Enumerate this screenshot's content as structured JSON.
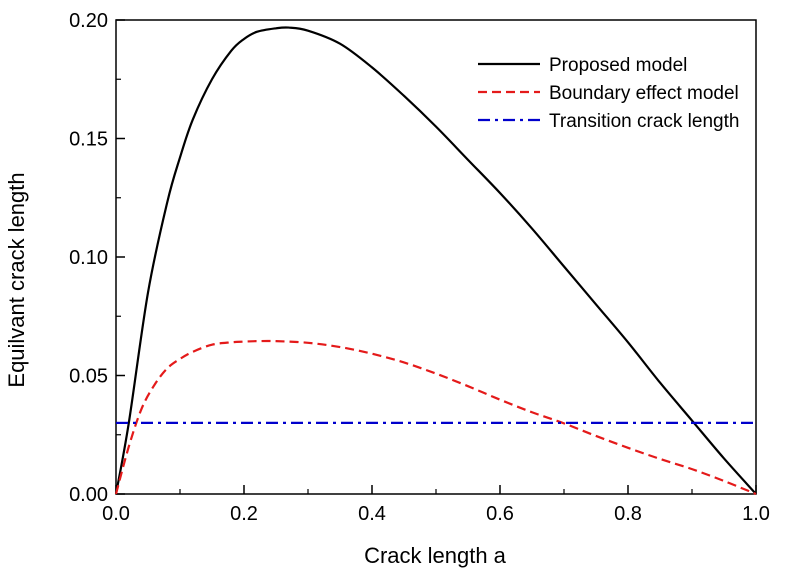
{
  "chart_data": {
    "type": "line",
    "title": "",
    "xlabel": "Crack length a",
    "ylabel": "Equilvant crack length",
    "xlim": [
      0.0,
      1.0
    ],
    "ylim": [
      0.0,
      0.2
    ],
    "xticks": [
      "0.0",
      "0.2",
      "0.4",
      "0.6",
      "0.8",
      "1.0"
    ],
    "yticks": [
      "0.00",
      "0.05",
      "0.10",
      "0.15",
      "0.20"
    ],
    "grid": false,
    "legend_position": "top-right",
    "series": [
      {
        "name": "Proposed model",
        "color": "#000000",
        "style": "solid",
        "x": [
          0.0,
          0.02,
          0.05,
          0.08,
          0.1,
          0.12,
          0.15,
          0.18,
          0.2,
          0.22,
          0.25,
          0.27,
          0.3,
          0.35,
          0.4,
          0.45,
          0.5,
          0.55,
          0.6,
          0.65,
          0.7,
          0.75,
          0.8,
          0.85,
          0.9,
          0.95,
          1.0
        ],
        "y": [
          0.0,
          0.03,
          0.085,
          0.123,
          0.142,
          0.158,
          0.175,
          0.187,
          0.192,
          0.195,
          0.1965,
          0.1968,
          0.1955,
          0.19,
          0.18,
          0.168,
          0.155,
          0.141,
          0.127,
          0.112,
          0.096,
          0.08,
          0.064,
          0.047,
          0.031,
          0.015,
          0.0
        ]
      },
      {
        "name": "Boundary effect model",
        "color": "#e41a1a",
        "style": "dashed",
        "x": [
          0.0,
          0.02,
          0.04,
          0.06,
          0.08,
          0.1,
          0.12,
          0.15,
          0.18,
          0.2,
          0.22,
          0.25,
          0.3,
          0.35,
          0.4,
          0.45,
          0.5,
          0.55,
          0.6,
          0.65,
          0.7,
          0.75,
          0.8,
          0.85,
          0.9,
          0.95,
          1.0
        ],
        "y": [
          0.0,
          0.02,
          0.036,
          0.046,
          0.053,
          0.057,
          0.06,
          0.063,
          0.064,
          0.0643,
          0.0645,
          0.0645,
          0.0638,
          0.062,
          0.0592,
          0.0555,
          0.0508,
          0.0455,
          0.0398,
          0.0345,
          0.0298,
          0.0245,
          0.0195,
          0.0148,
          0.0105,
          0.0055,
          0.0
        ]
      },
      {
        "name": "Transition crack length",
        "color": "#0000cc",
        "style": "dash-dot",
        "x": [
          0.0,
          1.0
        ],
        "y": [
          0.03,
          0.03
        ]
      }
    ]
  }
}
